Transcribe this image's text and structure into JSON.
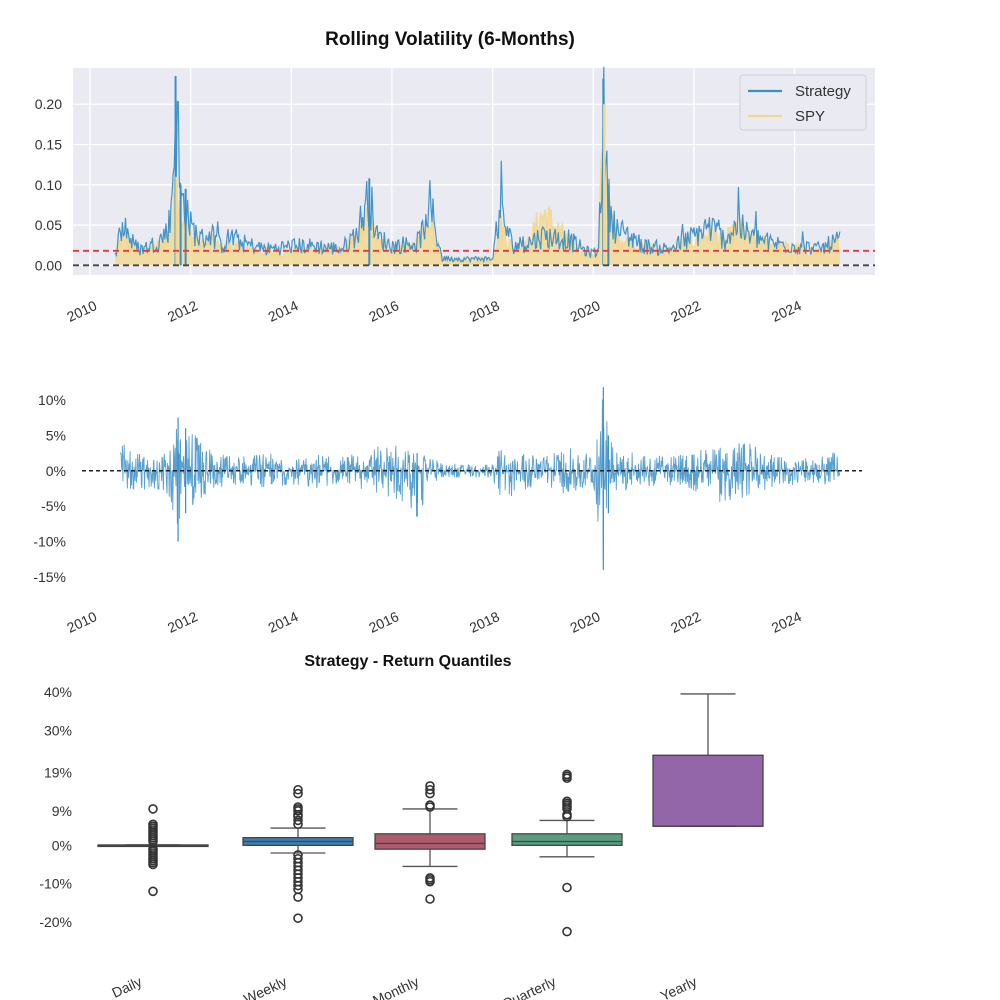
{
  "chart_data": [
    {
      "type": "line",
      "title": "Rolling Volatility (6-Months)",
      "xlabel": "",
      "ylabel": "",
      "xlim": [
        2010.0,
        2025.3
      ],
      "ylim": [
        -0.012,
        0.245
      ],
      "x_tick_labels": [
        "2010",
        "2012",
        "2014",
        "2016",
        "2018",
        "2020",
        "2022",
        "2024"
      ],
      "x_ticks": [
        2010,
        2012,
        2014,
        2016,
        2018,
        2020,
        2022,
        2024
      ],
      "y_ticks": [
        0.0,
        0.05,
        0.1,
        0.15,
        0.2
      ],
      "y_tick_labels": [
        "0.00",
        "0.05",
        "0.10",
        "0.15",
        "0.20"
      ],
      "grid": true,
      "legend_position": "top-right",
      "reference_lines": [
        {
          "y": 0.018,
          "style": "dashed",
          "color": "#e8383a"
        },
        {
          "y": 0.0,
          "style": "dashed",
          "color": "#444444"
        }
      ],
      "series": [
        {
          "name": "Strategy",
          "color": "#3a8fc7",
          "x": [
            2010.5,
            2010.6,
            2010.7,
            2010.8,
            2010.9,
            2011.0,
            2011.2,
            2011.4,
            2011.5,
            2011.6,
            2011.7,
            2011.8,
            2011.9,
            2012.0,
            2012.2,
            2012.4,
            2012.6,
            2012.8,
            2013.0,
            2013.5,
            2014.0,
            2014.5,
            2015.0,
            2015.3,
            2015.55,
            2015.7,
            2016.0,
            2016.5,
            2016.8,
            2017.0,
            2017.5,
            2018.0,
            2018.15,
            2018.4,
            2018.7,
            2019.0,
            2019.5,
            2019.9,
            2020.1,
            2020.2,
            2020.3,
            2020.45,
            2020.7,
            2021.0,
            2021.5,
            2022.0,
            2022.3,
            2022.6,
            2022.9,
            2023.0,
            2023.5,
            2024.0,
            2024.5,
            2024.9
          ],
          "y": [
            0.02,
            0.05,
            0.065,
            0.04,
            0.03,
            0.025,
            0.03,
            0.04,
            0.05,
            0.07,
            0.235,
            0.1,
            0.095,
            0.06,
            0.04,
            0.05,
            0.03,
            0.045,
            0.035,
            0.025,
            0.03,
            0.03,
            0.025,
            0.05,
            0.108,
            0.045,
            0.03,
            0.035,
            0.08,
            0.01,
            0.01,
            0.01,
            0.085,
            0.03,
            0.035,
            0.045,
            0.04,
            0.02,
            0.02,
            0.232,
            0.1,
            0.055,
            0.045,
            0.03,
            0.025,
            0.045,
            0.06,
            0.04,
            0.065,
            0.05,
            0.035,
            0.03,
            0.025,
            0.04
          ]
        },
        {
          "name": "SPY",
          "color": "#f5d78a",
          "x": [
            2010.5,
            2010.6,
            2010.7,
            2010.8,
            2010.9,
            2011.0,
            2011.2,
            2011.4,
            2011.5,
            2011.6,
            2011.7,
            2011.8,
            2011.9,
            2012.0,
            2012.2,
            2012.4,
            2012.6,
            2012.8,
            2013.0,
            2013.5,
            2014.0,
            2014.5,
            2015.0,
            2015.3,
            2015.55,
            2015.7,
            2016.0,
            2016.5,
            2016.8,
            2017.0,
            2017.5,
            2018.0,
            2018.15,
            2018.4,
            2018.7,
            2019.0,
            2019.5,
            2019.9,
            2020.1,
            2020.2,
            2020.3,
            2020.45,
            2020.7,
            2021.0,
            2021.5,
            2022.0,
            2022.3,
            2022.6,
            2022.9,
            2023.0,
            2023.5,
            2024.0,
            2024.5,
            2024.9
          ],
          "y": [
            0.015,
            0.035,
            0.04,
            0.03,
            0.022,
            0.02,
            0.025,
            0.03,
            0.04,
            0.06,
            0.11,
            0.08,
            0.07,
            0.045,
            0.03,
            0.035,
            0.025,
            0.03,
            0.025,
            0.02,
            0.02,
            0.025,
            0.02,
            0.04,
            0.07,
            0.035,
            0.025,
            0.03,
            0.06,
            0.008,
            0.008,
            0.01,
            0.06,
            0.025,
            0.03,
            0.08,
            0.035,
            0.015,
            0.02,
            0.2,
            0.08,
            0.045,
            0.035,
            0.025,
            0.02,
            0.04,
            0.05,
            0.035,
            0.055,
            0.045,
            0.03,
            0.025,
            0.02,
            0.035
          ]
        }
      ]
    },
    {
      "type": "line",
      "title": "",
      "xlabel": "",
      "ylabel": "",
      "xlim": [
        2010.0,
        2025.3
      ],
      "ylim": [
        -0.15,
        0.12
      ],
      "x_ticks": [
        2010,
        2012,
        2014,
        2016,
        2018,
        2020,
        2022,
        2024
      ],
      "x_tick_labels": [
        "2010",
        "2012",
        "2014",
        "2016",
        "2018",
        "2020",
        "2022",
        "2024"
      ],
      "y_ticks": [
        0.1,
        0.05,
        0.0,
        -0.05,
        -0.1,
        -0.15
      ],
      "y_tick_labels": [
        "10%",
        "5%",
        "0%",
        "-5%",
        "-10%",
        "-15%"
      ],
      "grid": false,
      "reference_lines": [
        {
          "y": 0.0,
          "style": "dashed",
          "color": "#222222"
        }
      ],
      "series": [
        {
          "color": "#3a8fc7",
          "note_envelope": true,
          "x": [
            2010.6,
            2010.8,
            2011.0,
            2011.3,
            2011.6,
            2011.75,
            2011.9,
            2012.1,
            2012.5,
            2013.0,
            2013.5,
            2014.0,
            2014.5,
            2015.0,
            2015.5,
            2016.0,
            2016.5,
            2016.8,
            2017.0,
            2017.5,
            2018.0,
            2018.15,
            2018.5,
            2019.0,
            2019.5,
            2020.0,
            2020.2,
            2020.3,
            2020.5,
            2021.0,
            2021.5,
            2022.0,
            2022.5,
            2023.0,
            2023.5,
            2024.0,
            2024.5,
            2024.9
          ],
          "upper": [
            0.04,
            0.035,
            0.025,
            0.02,
            0.03,
            0.075,
            0.06,
            0.05,
            0.025,
            0.02,
            0.025,
            0.02,
            0.025,
            0.02,
            0.03,
            0.04,
            0.025,
            0.02,
            0.01,
            0.01,
            0.01,
            0.045,
            0.025,
            0.02,
            0.035,
            0.02,
            0.118,
            0.05,
            0.03,
            0.025,
            0.02,
            0.03,
            0.04,
            0.045,
            0.025,
            0.02,
            0.02,
            0.03
          ],
          "lower": [
            -0.05,
            -0.035,
            -0.03,
            -0.025,
            -0.04,
            -0.1,
            -0.06,
            -0.045,
            -0.025,
            -0.02,
            -0.025,
            -0.02,
            -0.025,
            -0.02,
            -0.03,
            -0.04,
            -0.065,
            -0.02,
            -0.01,
            -0.01,
            -0.01,
            -0.05,
            -0.03,
            -0.02,
            -0.035,
            -0.02,
            -0.14,
            -0.06,
            -0.03,
            -0.025,
            -0.02,
            -0.03,
            -0.045,
            -0.04,
            -0.025,
            -0.02,
            -0.02,
            -0.025
          ]
        }
      ]
    },
    {
      "type": "box",
      "title": "Strategy - Return Quantiles",
      "xlabel": "",
      "ylabel": "",
      "ylim": [
        -0.27,
        0.42
      ],
      "y_ticks": [
        0.4,
        0.3,
        0.19,
        0.09,
        0.0,
        -0.1,
        -0.2
      ],
      "y_tick_labels": [
        "40%",
        "30%",
        "19%",
        "9%",
        "0%",
        "-10%",
        "-20%"
      ],
      "grid": false,
      "categories": [
        "Daily",
        "Weekly",
        "Monthly",
        "Quarterly",
        "Yearly"
      ],
      "boxes": [
        {
          "color": "#3a8fc7",
          "whisker_low": -0.001,
          "q1": -0.001,
          "median": 0.0,
          "q3": 0.001,
          "whisker_high": 0.001,
          "outliers": [
            0.095,
            0.055,
            0.05,
            0.045,
            0.04,
            0.035,
            0.03,
            0.025,
            0.02,
            0.015,
            0.01,
            -0.01,
            -0.015,
            -0.02,
            -0.025,
            -0.03,
            -0.035,
            -0.04,
            -0.045,
            -0.05,
            -0.12
          ]
        },
        {
          "color": "#3b7fb5",
          "whisker_low": -0.02,
          "q1": 0.0,
          "median": 0.01,
          "q3": 0.02,
          "whisker_high": 0.045,
          "outliers": [
            0.145,
            0.135,
            0.1,
            0.095,
            0.09,
            0.08,
            0.075,
            0.065,
            0.055,
            -0.025,
            -0.035,
            -0.045,
            -0.055,
            -0.065,
            -0.075,
            -0.085,
            -0.095,
            -0.105,
            -0.115,
            -0.135,
            -0.19
          ]
        },
        {
          "color": "#b15a6e",
          "whisker_low": -0.055,
          "q1": -0.01,
          "median": 0.005,
          "q3": 0.03,
          "whisker_high": 0.095,
          "outliers": [
            0.155,
            0.145,
            0.135,
            0.105,
            0.1,
            -0.085,
            -0.09,
            -0.095,
            -0.14
          ]
        },
        {
          "color": "#5a9e80",
          "whisker_low": -0.03,
          "q1": 0.0,
          "median": 0.01,
          "q3": 0.03,
          "whisker_high": 0.065,
          "outliers": [
            0.185,
            0.18,
            0.175,
            0.115,
            0.11,
            0.105,
            0.1,
            0.095,
            0.08,
            0.075,
            -0.11,
            -0.225
          ]
        },
        {
          "color": "#9365a9",
          "whisker_low": 0.05,
          "q1": 0.05,
          "median": 0.05,
          "q3": 0.235,
          "whisker_high": 0.395,
          "outliers": []
        }
      ]
    }
  ]
}
